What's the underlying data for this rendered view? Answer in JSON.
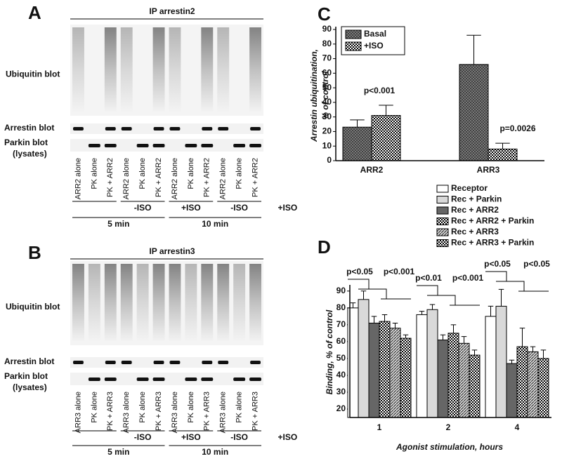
{
  "panels": [
    {
      "letter": "A",
      "ip": "IP arrestin2",
      "blots": [
        "Ubiquitin blot",
        "Arrestin blot",
        "Parkin blot",
        "(lysates)"
      ],
      "lanes": [
        "ARR2 alone",
        "PK  alone",
        "PK + ARR2",
        "ARR2 alone",
        "PK  alone",
        "PK + ARR2",
        "ARR2 alone",
        "PK  alone",
        "PK + ARR2",
        "ARR2 alone",
        "PK  alone",
        "PK + ARR2"
      ],
      "conditions": [
        "-ISO",
        "+ISO",
        "-ISO",
        "+ISO"
      ],
      "times": [
        "5 min",
        "10 min"
      ]
    },
    {
      "letter": "B",
      "ip": "IP arrestin3",
      "blots": [
        "Ubiquitin blot",
        "Arrestin blot",
        "Parkin blot",
        "(lysates)"
      ],
      "lanes": [
        "ARR3 alone",
        "PK  alone",
        "PK + ARR3",
        "ARR3 alone",
        "PK  alone",
        "PK + ARR3",
        "ARR3 alone",
        "PK  alone",
        "PK + ARR3",
        "ARR3 alone",
        "PK  alone",
        "PK + ARR3"
      ],
      "conditions": [
        "-ISO",
        "+ISO",
        "-ISO",
        "+ISO"
      ],
      "times": [
        "5 min",
        "10 min"
      ]
    }
  ],
  "chart_data": [
    {
      "type": "bar",
      "letter": "C",
      "ylabel": [
        "Arrestin ubiquitination,",
        "% of control"
      ],
      "categories": [
        "ARR2",
        "ARR3"
      ],
      "series": [
        {
          "name": "Basal",
          "color": "#555555",
          "pattern": "crosshatch",
          "values": [
            23,
            66
          ],
          "errors": [
            5,
            20
          ]
        },
        {
          "name": "+ISO",
          "color": "#222222",
          "pattern": "checker",
          "values": [
            31,
            8
          ],
          "errors": [
            7,
            4
          ]
        }
      ],
      "annotations": [
        "p<0.001",
        "p=0.0026"
      ],
      "ylim": [
        0,
        90
      ],
      "yticks": [
        0,
        10,
        20,
        30,
        40,
        50,
        60,
        70,
        80,
        90
      ]
    },
    {
      "type": "bar",
      "letter": "D",
      "ylabel": "Binding, % of control",
      "xlabel": "Agonist stimulation, hours",
      "categories": [
        "1",
        "2",
        "4"
      ],
      "series": [
        {
          "name": "Receptor",
          "color": "#ffffff",
          "pattern": "none",
          "values": [
            80,
            76,
            75
          ],
          "errors": [
            3,
            2,
            6
          ]
        },
        {
          "name": "Rec + Parkin",
          "color": "#d9d9d9",
          "pattern": "none",
          "values": [
            85,
            79,
            81
          ],
          "errors": [
            5,
            3,
            10
          ]
        },
        {
          "name": "Rec + ARR2",
          "color": "#666666",
          "pattern": "none",
          "values": [
            71,
            61,
            47
          ],
          "errors": [
            4,
            3,
            2
          ]
        },
        {
          "name": "Rec + ARR2 + Parkin",
          "color": "#555555",
          "pattern": "checker",
          "values": [
            72,
            65,
            57
          ],
          "errors": [
            4,
            5,
            11
          ]
        },
        {
          "name": "Rec + ARR3",
          "color": "#777777",
          "pattern": "hatch",
          "values": [
            68,
            59,
            54
          ],
          "errors": [
            3,
            4,
            3
          ]
        },
        {
          "name": "Rec + ARR3 + Parkin",
          "color": "#111111",
          "pattern": "checker",
          "values": [
            62,
            52,
            50
          ],
          "errors": [
            2,
            3,
            5
          ]
        }
      ],
      "annotations": [
        "p<0.05",
        "p<0.001",
        "p<0.01",
        "p<0.001",
        "p<0.05",
        "p<0.05"
      ],
      "ylim": [
        15,
        92
      ],
      "yticks": [
        20,
        30,
        40,
        50,
        60,
        70,
        80,
        90
      ]
    }
  ]
}
